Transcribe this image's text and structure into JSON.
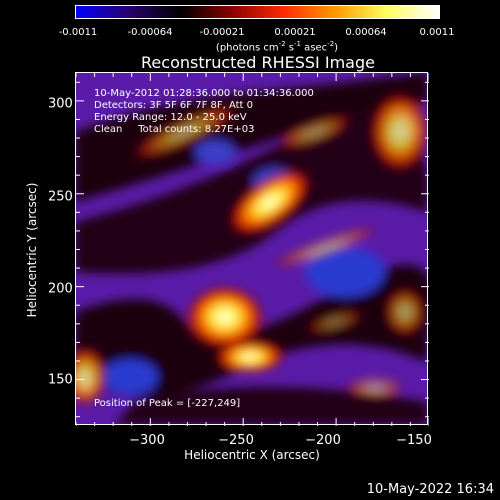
{
  "colorbar": {
    "ticks": [
      "-0.0011",
      "-0.00064",
      "-0.00021",
      "0.00021",
      "0.00064",
      "0.0011"
    ],
    "units_text": "(photons cm",
    "units_sup1": "-2",
    "units_mid": " s",
    "units_sup2": "-1",
    "units_mid2": " asec",
    "units_sup3": "-2",
    "units_end": ")",
    "colors": [
      "#0000ff",
      "#2a0070",
      "#000000",
      "#8a0000",
      "#ff2a00",
      "#ff9a00",
      "#ffff60",
      "#ffffff"
    ]
  },
  "chart_data": {
    "type": "heatmap",
    "title": "Reconstructed RHESSI Image",
    "xlabel": "Heliocentric X (arcsec)",
    "ylabel": "Heliocentric Y (arcsec)",
    "xlim": [
      -340,
      -150
    ],
    "ylim": [
      125,
      315
    ],
    "xticks": [
      -300,
      -250,
      -200,
      -150
    ],
    "yticks": [
      150,
      200,
      250,
      300
    ],
    "xtick_labels": [
      "−300",
      "−250",
      "−200",
      "−150"
    ],
    "ytick_labels": [
      "150",
      "200",
      "250",
      "300"
    ],
    "peak": [
      -227,
      249
    ],
    "annotations": {
      "line1": "10-May-2012 01:28:36.000 to 01:34:36.000",
      "line2": "Detectors: 3F 5F 6F 7F 8F, Att 0",
      "line3": "Energy Range: 12.0 - 25.0 keV",
      "line4": "Clean     Total counts: 8.27E+03",
      "peak_text": "Position of Peak = [-227,249]"
    }
  },
  "footer": "10-May-2022 16:34"
}
